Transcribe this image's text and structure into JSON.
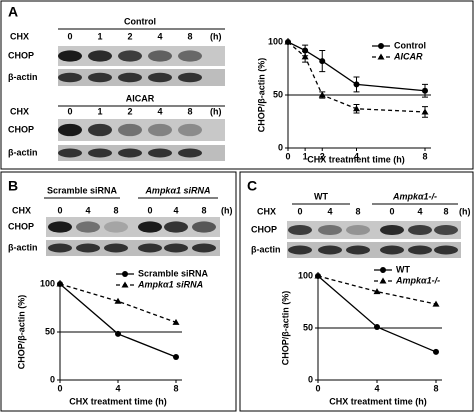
{
  "panels": [
    {
      "label": "A",
      "blots": [
        {
          "title": "Control",
          "lane_header": "CHX",
          "lanes": [
            "0",
            "1",
            "2",
            "4",
            "8"
          ],
          "unit": "(h)",
          "rows": [
            "CHOP",
            "β-actin"
          ]
        },
        {
          "title": "AICAR",
          "lane_header": "CHX",
          "lanes": [
            "0",
            "1",
            "2",
            "4",
            "8"
          ],
          "unit": "(h)",
          "rows": [
            "CHOP",
            "β-actin"
          ]
        }
      ]
    },
    {
      "label": "B",
      "blots": [
        {
          "groups": [
            "Scramble siRNA",
            "Ampkα1 siRNA"
          ],
          "lane_header": "CHX",
          "lanes": [
            "0",
            "4",
            "8",
            "0",
            "4",
            "8"
          ],
          "unit": "(h)",
          "rows": [
            "CHOP",
            "β-actin"
          ]
        }
      ]
    },
    {
      "label": "C",
      "blots": [
        {
          "groups": [
            "WT",
            "Ampkα1-/-"
          ],
          "lane_header": "CHX",
          "lanes": [
            "0",
            "4",
            "8",
            "0",
            "4",
            "8"
          ],
          "unit": "(h)",
          "rows": [
            "CHOP",
            "β-actin"
          ]
        }
      ]
    }
  ],
  "chart_data": [
    {
      "type": "line",
      "x_label": "CHX treatment time (h)",
      "y_label": "CHOP/β-actin (%)",
      "x": [
        0,
        1,
        2,
        4,
        8
      ],
      "xlim": [
        0,
        8
      ],
      "xticks": [
        0,
        1,
        2,
        4,
        8
      ],
      "ylim": [
        0,
        100
      ],
      "yticks": [
        0,
        50,
        100
      ],
      "reference_line": 50,
      "series": [
        {
          "name": "Control",
          "color": "#000000",
          "line_style": "solid",
          "marker": "circle",
          "values": [
            100,
            92,
            82,
            60,
            54
          ],
          "errors": [
            0,
            5,
            10,
            7,
            6
          ]
        },
        {
          "name": "AICAR",
          "color": "#000000",
          "line_style": "dashed",
          "marker": "triangle",
          "values": [
            100,
            86,
            50,
            37,
            34
          ],
          "errors": [
            0,
            5,
            3,
            4,
            5
          ]
        }
      ]
    },
    {
      "type": "line",
      "x_label": "CHX treatment time (h)",
      "y_label": "CHOP/β-actin (%)",
      "x": [
        0,
        4,
        8
      ],
      "xlim": [
        0,
        8
      ],
      "xticks": [
        0,
        4,
        8
      ],
      "ylim": [
        0,
        100
      ],
      "yticks": [
        0,
        50,
        100
      ],
      "reference_line": 50,
      "series": [
        {
          "name": "Scramble siRNA",
          "color": "#000000",
          "line_style": "solid",
          "marker": "circle",
          "values": [
            100,
            48,
            24
          ]
        },
        {
          "name": "Ampkα1 siRNA",
          "color": "#000000",
          "line_style": "dashed",
          "marker": "triangle",
          "values": [
            100,
            82,
            60
          ]
        }
      ]
    },
    {
      "type": "line",
      "x_label": "CHX treatment time (h)",
      "y_label": "CHOP/β-actin (%)",
      "x": [
        0,
        4,
        8
      ],
      "xlim": [
        0,
        8
      ],
      "xticks": [
        0,
        4,
        8
      ],
      "ylim": [
        0,
        100
      ],
      "yticks": [
        0,
        50,
        100
      ],
      "reference_line": 50,
      "series": [
        {
          "name": "WT",
          "color": "#000000",
          "line_style": "solid",
          "marker": "circle",
          "values": [
            100,
            51,
            27
          ]
        },
        {
          "name": "Ampkα1-/-",
          "color": "#000000",
          "line_style": "dashed",
          "marker": "triangle",
          "values": [
            100,
            85,
            73
          ]
        }
      ]
    }
  ]
}
